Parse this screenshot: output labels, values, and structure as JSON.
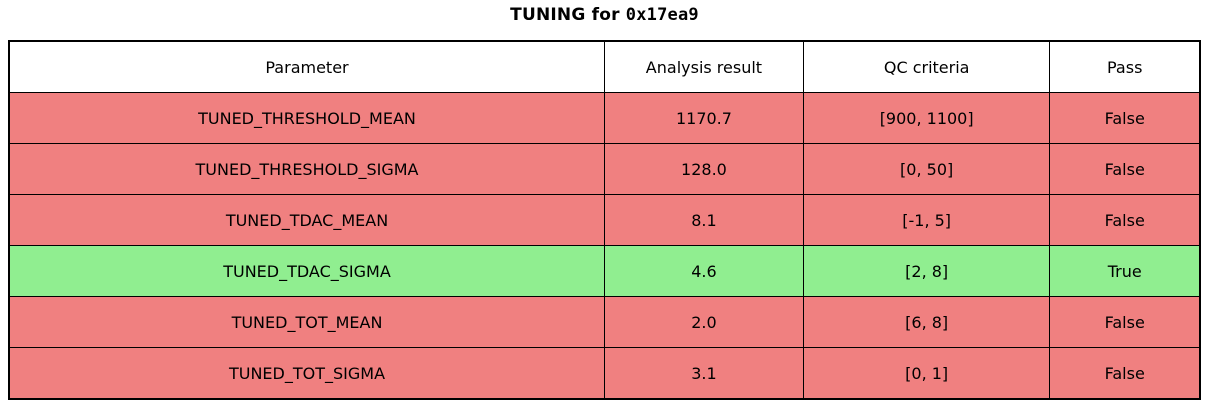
{
  "title": {
    "prefix": "TUNING for ",
    "chip_id": "0x17ea9"
  },
  "table": {
    "headers": [
      "Parameter",
      "Analysis result",
      "QC criteria",
      "Pass"
    ],
    "rows": [
      {
        "parameter": "TUNED_THRESHOLD_MEAN",
        "result": "1170.7",
        "criteria": "[900, 1100]",
        "pass": "False"
      },
      {
        "parameter": "TUNED_THRESHOLD_SIGMA",
        "result": "128.0",
        "criteria": "[0, 50]",
        "pass": "False"
      },
      {
        "parameter": "TUNED_TDAC_MEAN",
        "result": "8.1",
        "criteria": "[-1, 5]",
        "pass": "False"
      },
      {
        "parameter": "TUNED_TDAC_SIGMA",
        "result": "4.6",
        "criteria": "[2, 8]",
        "pass": "True"
      },
      {
        "parameter": "TUNED_TOT_MEAN",
        "result": "2.0",
        "criteria": "[6, 8]",
        "pass": "False"
      },
      {
        "parameter": "TUNED_TOT_SIGMA",
        "result": "3.1",
        "criteria": "[0, 1]",
        "pass": "False"
      }
    ],
    "colors": {
      "pass_true_bg": "#90ee90",
      "pass_false_bg": "#f08080",
      "header_bg": "#ffffff",
      "border": "#000000",
      "text": "#000000"
    }
  }
}
